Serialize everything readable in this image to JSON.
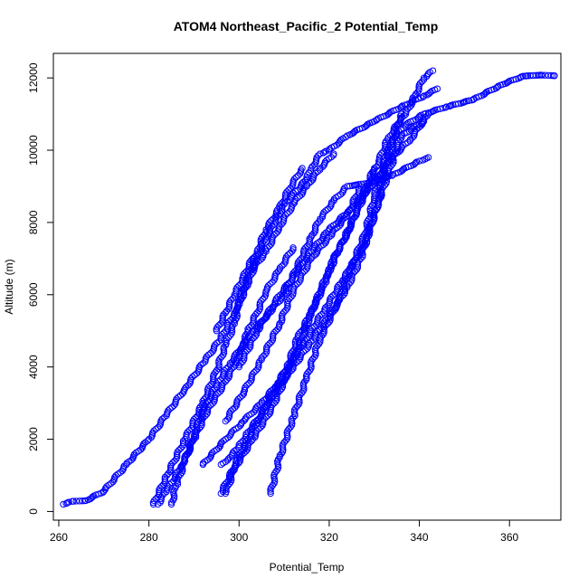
{
  "chart_data": {
    "type": "scatter",
    "title": "ATOM4 Northeast_Pacific_2 Potential_Temp",
    "xlabel": "Potential_Temp",
    "ylabel": "Altitude (m)",
    "xlim": [
      258.8,
      371.4
    ],
    "ylim": [
      -240,
      12680
    ],
    "x_ticks": [
      260,
      280,
      300,
      320,
      340,
      360
    ],
    "y_ticks": [
      0,
      2000,
      4000,
      6000,
      8000,
      10000,
      12000
    ],
    "marker": "open-circle",
    "point_color": "#0000ff",
    "grid": false,
    "series": [
      {
        "x": [
          261,
          263,
          266,
          270,
          275,
          280,
          284,
          288,
          292,
          296,
          299,
          302,
          304,
          306,
          308,
          310,
          313,
          315,
          316,
          318,
          320,
          324,
          330,
          336,
          341,
          344
        ],
        "y": [
          200,
          280,
          300,
          560,
          1300,
          2000,
          2700,
          3400,
          4100,
          4800,
          5500,
          6300,
          7000,
          7600,
          8000,
          8500,
          8900,
          9200,
          9500,
          9900,
          10000,
          10400,
          10800,
          11200,
          11500,
          11700
        ]
      },
      {
        "x": [
          281,
          284,
          288,
          292,
          295,
          297,
          299,
          300,
          302,
          304,
          306,
          309,
          311,
          314
        ],
        "y": [
          200,
          1000,
          2000,
          3000,
          3900,
          4600,
          5200,
          5800,
          6500,
          7200,
          7800,
          8400,
          8900,
          9500
        ]
      },
      {
        "x": [
          285,
          286,
          288,
          290,
          292,
          295,
          298,
          302,
          306,
          310,
          313,
          316,
          318,
          321,
          324,
          329,
          334,
          340,
          342
        ],
        "y": [
          200,
          700,
          1400,
          2100,
          2800,
          3500,
          4100,
          4800,
          5400,
          6000,
          6800,
          7600,
          8100,
          8600,
          9000,
          9100,
          9300,
          9700,
          9800
        ]
      },
      {
        "x": [
          282,
          284,
          287,
          290,
          293,
          297,
          300,
          302,
          304,
          306,
          309,
          312
        ],
        "y": [
          200,
          600,
          1200,
          2000,
          2800,
          3600,
          4300,
          5000,
          5500,
          6100,
          6700,
          7300
        ]
      },
      {
        "x": [
          297,
          299,
          303,
          307,
          310,
          313,
          316,
          319,
          322,
          325,
          328,
          331,
          333,
          335,
          337,
          339,
          341,
          343
        ],
        "y": [
          500,
          1200,
          2000,
          2800,
          3600,
          4500,
          5500,
          6400,
          7200,
          8000,
          8800,
          9700,
          10300,
          10700,
          11000,
          11500,
          12000,
          12200
        ]
      },
      {
        "x": [
          292,
          297,
          301,
          305,
          309,
          314,
          319,
          323,
          328,
          331,
          333,
          336,
          341
        ],
        "y": [
          1300,
          2000,
          2500,
          3000,
          3600,
          4600,
          5600,
          6400,
          7400,
          8600,
          9300,
          10400,
          10800
        ]
      },
      {
        "x": [
          296,
          298,
          300,
          302,
          305,
          308,
          311,
          313,
          316,
          319,
          321,
          324,
          326,
          328,
          330
        ],
        "y": [
          1300,
          1500,
          1800,
          2200,
          2700,
          3400,
          4100,
          4800,
          5500,
          6300,
          7000,
          7700,
          8300,
          8900,
          9500
        ]
      },
      {
        "x": [
          296,
          300,
          304,
          308,
          312,
          316,
          320,
          324,
          327,
          329,
          331,
          332,
          334,
          336
        ],
        "y": [
          500,
          1500,
          2500,
          3300,
          4000,
          4700,
          5400,
          6200,
          7000,
          7800,
          8600,
          9300,
          10200,
          11000
        ]
      },
      {
        "x": [
          307,
          309,
          312,
          315,
          318,
          322,
          325,
          328,
          330,
          332,
          334,
          337,
          341,
          346,
          352,
          358,
          363,
          367,
          370
        ],
        "y": [
          500,
          1500,
          2600,
          3700,
          4800,
          5800,
          6800,
          7700,
          8700,
          9600,
          10300,
          10700,
          11000,
          11200,
          11400,
          11800,
          12050,
          12080,
          12060
        ]
      },
      {
        "x": [
          300,
          304,
          308,
          312,
          316,
          320,
          325,
          330,
          334,
          338,
          342
        ],
        "y": [
          4000,
          5000,
          5800,
          6500,
          7200,
          7800,
          8400,
          9100,
          9800,
          10300,
          11000
        ]
      },
      {
        "x": [
          297,
          301,
          305,
          309,
          312,
          316,
          320,
          324,
          327
        ],
        "y": [
          2500,
          3300,
          4200,
          5200,
          6100,
          7000,
          7600,
          8200,
          9000
        ]
      },
      {
        "x": [
          303,
          306,
          309,
          312,
          315,
          318,
          321
        ],
        "y": [
          6700,
          7200,
          7900,
          8500,
          9000,
          9500,
          9900
        ]
      },
      {
        "x": [
          295,
          297,
          299,
          301,
          303
        ],
        "y": [
          5000,
          5500,
          6000,
          6500,
          7000
        ]
      }
    ]
  }
}
